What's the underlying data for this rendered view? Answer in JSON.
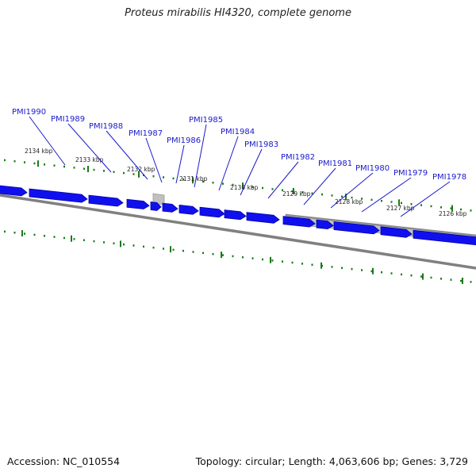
{
  "title": "Proteus mirabilis HI4320, complete genome",
  "footer": {
    "accession": "Accession: NC_010554",
    "stats": "Topology: circular; Length: 4,063,606 bp; Genes: 3,729"
  },
  "colors": {
    "gene": "#1010ee",
    "gene_edge": "#0000aa",
    "gene_label": "#1a1acc",
    "tick": "#1a7a1a",
    "backbone": "#808080",
    "feature": "#c0c0c0"
  },
  "gene_labels": [
    "PMI1990",
    "PMI1989",
    "PMI1988",
    "PMI1987",
    "PMI1986",
    "PMI1985",
    "PMI1984",
    "PMI1983",
    "PMI1982",
    "PMI1981",
    "PMI1980",
    "PMI1979",
    "PMI1978"
  ],
  "kbp_labels": [
    "2134 kbp",
    "2133 kbp",
    "2132 kbp",
    "2131 kbp",
    "2130 kbp",
    "2129 kbp",
    "2128 kbp",
    "2127 kbp",
    "2126 kbp"
  ]
}
